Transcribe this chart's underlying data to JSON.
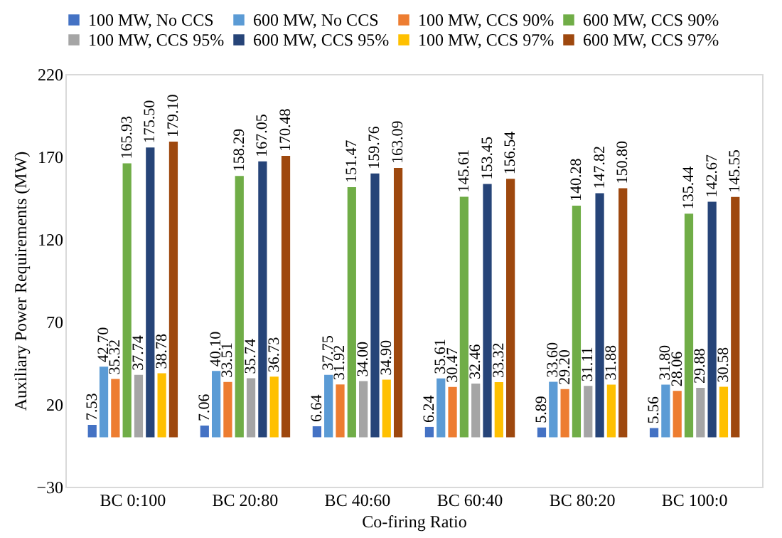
{
  "chart_data": {
    "type": "bar",
    "xlabel": "Co-firing Ratio",
    "ylabel": "Auxiliary Power Requirements (MW)",
    "categories": [
      "BC 0:100",
      "BC 20:80",
      "BC 40:60",
      "BC 60:40",
      "BC 80:20",
      "BC 100:0"
    ],
    "series": [
      {
        "name": "100 MW, No CCS",
        "color": "#4472c4",
        "values": [
          7.53,
          7.06,
          6.64,
          6.24,
          5.89,
          5.56
        ],
        "value_labels": [
          "7.53",
          "7.06",
          "6.64",
          "6.24",
          "5.89",
          "5.56"
        ]
      },
      {
        "name": "600 MW, No CCS",
        "color": "#5b9bd5",
        "values": [
          42.7,
          40.1,
          37.75,
          35.61,
          33.6,
          31.8
        ],
        "value_labels": [
          "42.70",
          "40.10",
          "37.75",
          "35.61",
          "33.60",
          "31.80"
        ]
      },
      {
        "name": "100 MW, CCS 90%",
        "color": "#ed7d31",
        "values": [
          35.32,
          33.51,
          31.92,
          30.47,
          29.2,
          28.06
        ],
        "value_labels": [
          "35.32",
          "33.51",
          "31.92",
          "30.47",
          "29.20",
          "28.06"
        ]
      },
      {
        "name": "600 MW, CCS 90%",
        "color": "#70ad47",
        "values": [
          165.93,
          158.29,
          151.47,
          145.61,
          140.28,
          135.44
        ],
        "value_labels": [
          "165.93",
          "158.29",
          "151.47",
          "145.61",
          "140.28",
          "135.44"
        ]
      },
      {
        "name": "100 MW, CCS 95%",
        "color": "#a5a5a5",
        "values": [
          37.74,
          35.74,
          34.0,
          32.46,
          31.11,
          29.88
        ],
        "value_labels": [
          "37.74",
          "35.74",
          "34.00",
          "32.46",
          "31.11",
          "29.88"
        ]
      },
      {
        "name": "600 MW, CCS 95%",
        "color": "#264478",
        "values": [
          175.5,
          167.05,
          159.76,
          153.45,
          147.82,
          142.67
        ],
        "value_labels": [
          "175.50",
          "167.05",
          "159.76",
          "153.45",
          "147.82",
          "142.67"
        ]
      },
      {
        "name": "100 MW, CCS 97%",
        "color": "#ffc000",
        "values": [
          38.78,
          36.73,
          34.9,
          33.32,
          31.88,
          30.58
        ],
        "value_labels": [
          "38.78",
          "36.73",
          "34.90",
          "33.32",
          "31.88",
          "30.58"
        ]
      },
      {
        "name": "600 MW, CCS 97%",
        "color": "#9e480e",
        "values": [
          179.1,
          170.48,
          163.09,
          156.54,
          150.8,
          145.55
        ],
        "value_labels": [
          "179.10",
          "170.48",
          "163.09",
          "156.54",
          "150.80",
          "145.55"
        ]
      }
    ],
    "ylim": [
      -30,
      220
    ],
    "yticks": [
      -30,
      20,
      70,
      120,
      170,
      220
    ],
    "grid": false,
    "legend": "top"
  }
}
